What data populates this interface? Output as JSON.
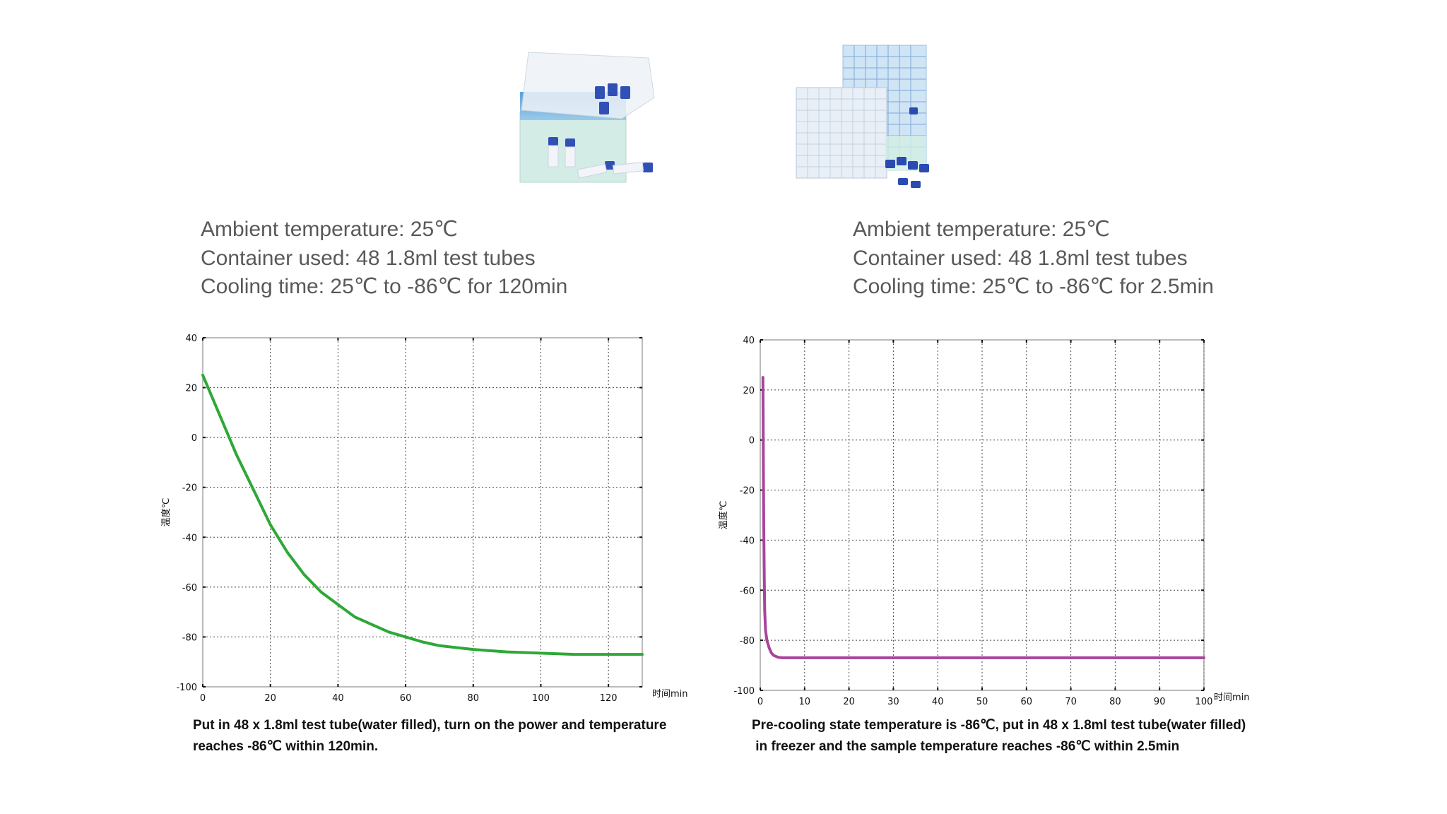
{
  "panels": [
    {
      "info": [
        "Ambient temperature: 25℃",
        "Container used: 48 1.8ml test tubes",
        "Cooling time: 25℃ to -86℃ for 120min"
      ],
      "caption": [
        "Put in 48 x 1.8ml test tube(water filled), turn on the power and temperature",
        "reaches -86℃ within 120min."
      ]
    },
    {
      "info": [
        "Ambient temperature: 25℃",
        "Container used: 48 1.8ml test tubes",
        "Cooling time: 25℃ to -86℃ for 2.5min"
      ],
      "caption": [
        "Pre-cooling state temperature is -86℃, put in 48 x 1.8ml test tube(water filled)",
        " in freezer and the sample temperature reaches -86℃ within 2.5min"
      ]
    }
  ],
  "chart_data": [
    {
      "type": "line",
      "title": "",
      "xlabel": "时间min",
      "ylabel": "温度℃",
      "xlim": [
        0,
        130
      ],
      "ylim": [
        -100,
        40
      ],
      "xticks": [
        0,
        20,
        40,
        60,
        80,
        100,
        120
      ],
      "yticks": [
        40,
        20,
        0,
        -20,
        -40,
        -60,
        -80,
        -100
      ],
      "grid": true,
      "color": "#2ea836",
      "series": [
        {
          "x": [
            0,
            5,
            10,
            15,
            20,
            25,
            30,
            35,
            40,
            45,
            50,
            55,
            60,
            65,
            70,
            80,
            90,
            100,
            110,
            120,
            130
          ],
          "y": [
            25,
            9,
            -7,
            -21,
            -35,
            -46,
            -55,
            -62,
            -67,
            -72,
            -75,
            -78,
            -80,
            -82,
            -83.5,
            -85,
            -86,
            -86.5,
            -87,
            -87,
            -87
          ]
        }
      ]
    },
    {
      "type": "line",
      "title": "",
      "xlabel": "时间min",
      "ylabel": "温度℃",
      "xlim": [
        0,
        100
      ],
      "ylim": [
        -100,
        40
      ],
      "xticks": [
        0,
        10,
        20,
        30,
        40,
        50,
        60,
        70,
        80,
        90,
        100
      ],
      "yticks": [
        40,
        20,
        0,
        -20,
        -40,
        -60,
        -80,
        -100
      ],
      "grid": true,
      "color": "#a8449a",
      "series": [
        {
          "x": [
            0.6,
            0.65,
            0.7,
            0.8,
            0.9,
            1.0,
            1.2,
            1.5,
            2.0,
            2.5,
            3.0,
            4.0,
            5.0,
            7.0,
            10,
            30,
            60,
            100
          ],
          "y": [
            25,
            10,
            -10,
            -35,
            -55,
            -68,
            -76,
            -80,
            -83,
            -85,
            -86,
            -86.8,
            -87,
            -87,
            -87,
            -87,
            -87,
            -87
          ]
        }
      ]
    }
  ]
}
